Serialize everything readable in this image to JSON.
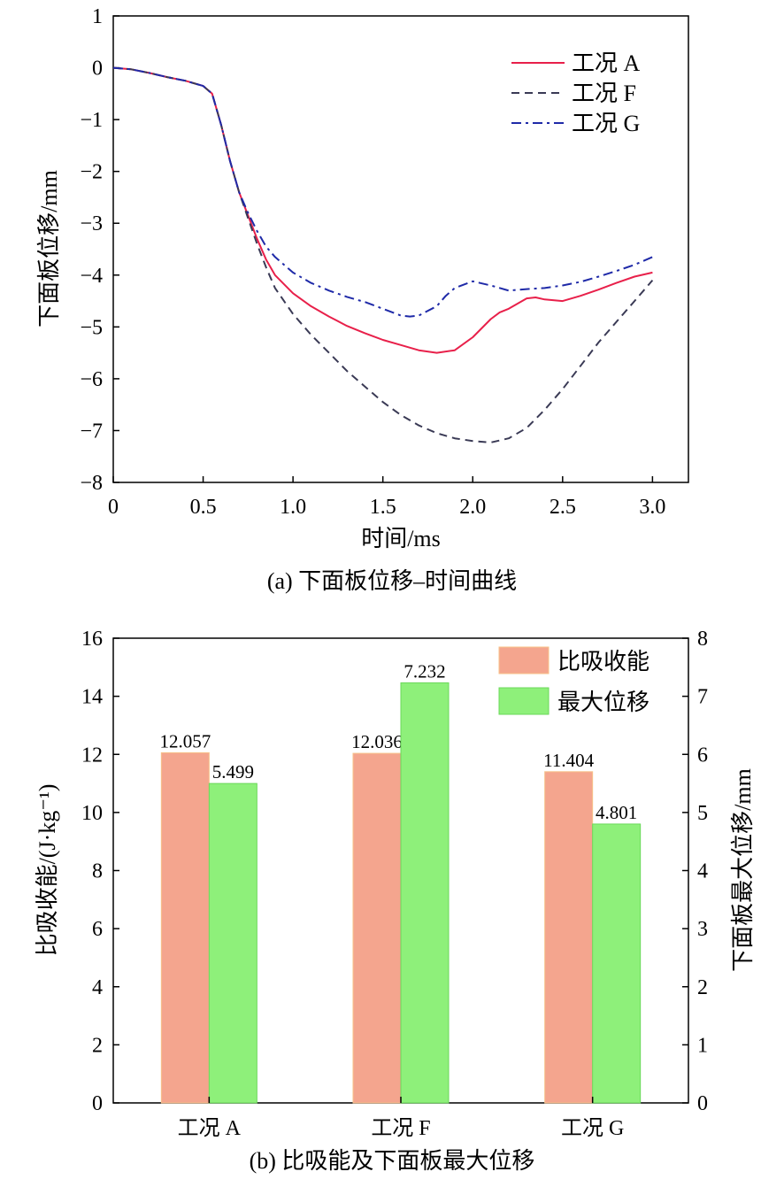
{
  "chart_data": [
    {
      "type": "line",
      "caption": "(a) 下面板位移–时间曲线",
      "xlabel": "时间/ms",
      "ylabel": "下面板位移/mm",
      "xlim": [
        0,
        3.2
      ],
      "ylim": [
        -8,
        1
      ],
      "xticks": [
        0,
        0.5,
        1.0,
        1.5,
        2.0,
        2.5,
        3.0
      ],
      "xtick_labels": [
        "0",
        "0.5",
        "1.0",
        "1.5",
        "2.0",
        "2.5",
        "3.0"
      ],
      "yticks": [
        1,
        0,
        -1,
        -2,
        -3,
        -4,
        -5,
        -6,
        -7,
        -8
      ],
      "ytick_labels": [
        "1",
        "0",
        "−1",
        "−2",
        "−3",
        "−4",
        "−5",
        "−6",
        "−7",
        "−8"
      ],
      "legend_position": "top-right",
      "grid": false,
      "series": [
        {
          "name": "工况 A",
          "color": "#e8204a",
          "style": "solid",
          "points": [
            [
              0,
              0
            ],
            [
              0.1,
              -0.03
            ],
            [
              0.2,
              -0.1
            ],
            [
              0.3,
              -0.18
            ],
            [
              0.4,
              -0.25
            ],
            [
              0.5,
              -0.35
            ],
            [
              0.55,
              -0.5
            ],
            [
              0.6,
              -1.1
            ],
            [
              0.65,
              -1.8
            ],
            [
              0.7,
              -2.4
            ],
            [
              0.75,
              -2.85
            ],
            [
              0.8,
              -3.3
            ],
            [
              0.85,
              -3.7
            ],
            [
              0.9,
              -4.0
            ],
            [
              1.0,
              -4.35
            ],
            [
              1.1,
              -4.6
            ],
            [
              1.2,
              -4.8
            ],
            [
              1.3,
              -4.98
            ],
            [
              1.4,
              -5.12
            ],
            [
              1.5,
              -5.25
            ],
            [
              1.6,
              -5.35
            ],
            [
              1.7,
              -5.45
            ],
            [
              1.8,
              -5.5
            ],
            [
              1.9,
              -5.45
            ],
            [
              2.0,
              -5.2
            ],
            [
              2.1,
              -4.85
            ],
            [
              2.15,
              -4.72
            ],
            [
              2.2,
              -4.65
            ],
            [
              2.3,
              -4.45
            ],
            [
              2.35,
              -4.43
            ],
            [
              2.4,
              -4.47
            ],
            [
              2.5,
              -4.5
            ],
            [
              2.6,
              -4.4
            ],
            [
              2.7,
              -4.28
            ],
            [
              2.8,
              -4.15
            ],
            [
              2.9,
              -4.03
            ],
            [
              3.0,
              -3.95
            ]
          ]
        },
        {
          "name": "工况 F",
          "color": "#3a3a55",
          "style": "dashed",
          "points": [
            [
              0,
              0
            ],
            [
              0.1,
              -0.03
            ],
            [
              0.2,
              -0.1
            ],
            [
              0.3,
              -0.18
            ],
            [
              0.4,
              -0.25
            ],
            [
              0.5,
              -0.35
            ],
            [
              0.55,
              -0.5
            ],
            [
              0.6,
              -1.1
            ],
            [
              0.65,
              -1.8
            ],
            [
              0.7,
              -2.4
            ],
            [
              0.75,
              -2.9
            ],
            [
              0.8,
              -3.4
            ],
            [
              0.85,
              -3.85
            ],
            [
              0.9,
              -4.25
            ],
            [
              1.0,
              -4.75
            ],
            [
              1.1,
              -5.15
            ],
            [
              1.2,
              -5.5
            ],
            [
              1.3,
              -5.85
            ],
            [
              1.4,
              -6.15
            ],
            [
              1.5,
              -6.45
            ],
            [
              1.6,
              -6.7
            ],
            [
              1.7,
              -6.9
            ],
            [
              1.8,
              -7.05
            ],
            [
              1.9,
              -7.15
            ],
            [
              2.0,
              -7.2
            ],
            [
              2.1,
              -7.23
            ],
            [
              2.2,
              -7.15
            ],
            [
              2.3,
              -6.95
            ],
            [
              2.4,
              -6.6
            ],
            [
              2.5,
              -6.2
            ],
            [
              2.6,
              -5.75
            ],
            [
              2.7,
              -5.3
            ],
            [
              2.8,
              -4.9
            ],
            [
              2.9,
              -4.5
            ],
            [
              3.0,
              -4.1
            ]
          ]
        },
        {
          "name": "工况 G",
          "color": "#1f2aa8",
          "style": "dashdot",
          "points": [
            [
              0,
              0
            ],
            [
              0.1,
              -0.03
            ],
            [
              0.2,
              -0.1
            ],
            [
              0.3,
              -0.18
            ],
            [
              0.4,
              -0.25
            ],
            [
              0.5,
              -0.35
            ],
            [
              0.55,
              -0.5
            ],
            [
              0.6,
              -1.1
            ],
            [
              0.65,
              -1.8
            ],
            [
              0.7,
              -2.4
            ],
            [
              0.75,
              -2.8
            ],
            [
              0.8,
              -3.15
            ],
            [
              0.85,
              -3.45
            ],
            [
              0.9,
              -3.65
            ],
            [
              1.0,
              -3.95
            ],
            [
              1.1,
              -4.15
            ],
            [
              1.2,
              -4.3
            ],
            [
              1.3,
              -4.42
            ],
            [
              1.4,
              -4.52
            ],
            [
              1.5,
              -4.65
            ],
            [
              1.6,
              -4.78
            ],
            [
              1.65,
              -4.8
            ],
            [
              1.7,
              -4.78
            ],
            [
              1.8,
              -4.6
            ],
            [
              1.85,
              -4.4
            ],
            [
              1.9,
              -4.25
            ],
            [
              2.0,
              -4.12
            ],
            [
              2.1,
              -4.2
            ],
            [
              2.2,
              -4.3
            ],
            [
              2.3,
              -4.27
            ],
            [
              2.4,
              -4.25
            ],
            [
              2.5,
              -4.2
            ],
            [
              2.6,
              -4.13
            ],
            [
              2.7,
              -4.03
            ],
            [
              2.8,
              -3.92
            ],
            [
              2.9,
              -3.8
            ],
            [
              3.0,
              -3.65
            ]
          ]
        }
      ]
    },
    {
      "type": "bar",
      "caption": "(b) 比吸能及下面板最大位移",
      "categories": [
        "工况 A",
        "工况 F",
        "工况 G"
      ],
      "ylabel": "比吸收能/(J·kg⁻¹)",
      "ylabel2": "下面板最大位移/mm",
      "ylim": [
        0,
        16
      ],
      "ylim2": [
        0,
        8
      ],
      "yticks": [
        0,
        2,
        4,
        6,
        8,
        10,
        12,
        14,
        16
      ],
      "yticks2": [
        0,
        1,
        2,
        3,
        4,
        5,
        6,
        7,
        8
      ],
      "legend_position": "top-right",
      "grid": false,
      "series": [
        {
          "name": "比吸收能",
          "axis": "left",
          "color": "#f4a58e",
          "edge": "#f7c28a",
          "values": [
            12.057,
            12.036,
            11.404
          ],
          "labels": [
            "12.057",
            "12.036",
            "11.404"
          ]
        },
        {
          "name": "最大位移",
          "axis": "right",
          "color": "#8ef07a",
          "edge": "#6bd85a",
          "values": [
            5.499,
            7.232,
            4.801
          ],
          "labels": [
            "5.499",
            "7.232",
            "4.801"
          ]
        }
      ]
    }
  ]
}
